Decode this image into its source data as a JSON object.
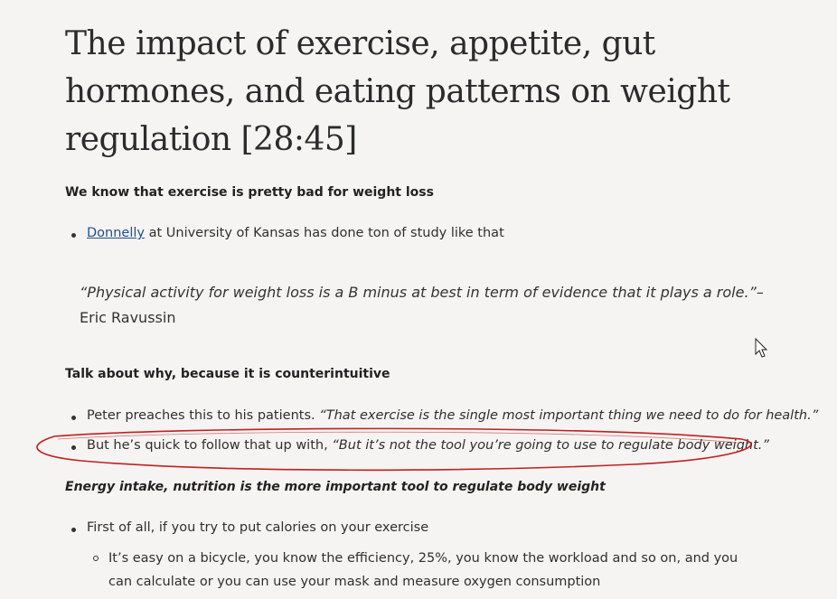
{
  "article": {
    "title": "The impact of exercise, appetite, gut hormones, and eating patterns on weight regulation [28:45]",
    "section1": {
      "heading": "We know that exercise is pretty bad for weight loss",
      "bullet1_link": "Donnelly",
      "bullet1_rest": " at University of Kansas has done ton of study like that"
    },
    "quote": {
      "text": "“Physical activity for weight loss is a B minus at best in term of evidence that it plays a role.”",
      "attribution": "– Eric Ravussin"
    },
    "section2": {
      "heading": "Talk about why, because it is counterintuitive",
      "bullet1_plain": "Peter preaches this to his patients. ",
      "bullet1_italic": "“That exercise is the single most important thing we need to do for health.”",
      "bullet2_plain": "But he’s quick to follow that up with, ",
      "bullet2_italic": "“But it’s not the tool you’re going to use to regulate body weight.”"
    },
    "section3": {
      "heading": "Energy intake, nutrition is the more important tool to regulate body weight",
      "bullet1": "First of all, if you try to put calories on your exercise",
      "sub_bullet1": "It’s easy on a bicycle, you know the efficiency, 25%, you know the workload and so on, and you can calculate or you can use your mask and measure oxygen consumption"
    }
  },
  "annotation": {
    "ellipse_color": "#c0201e"
  },
  "icons": {
    "cursor": "mouse-pointer-icon"
  }
}
